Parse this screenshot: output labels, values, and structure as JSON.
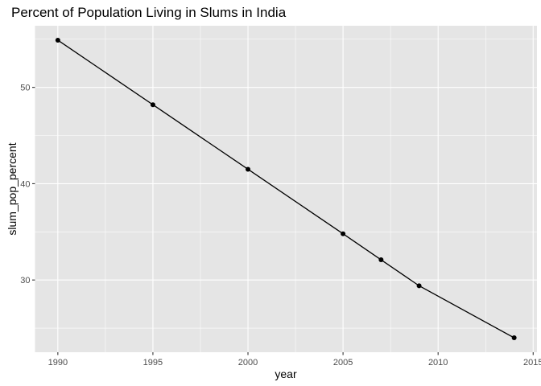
{
  "chart_data": {
    "type": "line",
    "title": "Percent of Population Living in Slums in India",
    "xlabel": "year",
    "ylabel": "slum_pop_percent",
    "x": [
      1990,
      1995,
      2000,
      2005,
      2007,
      2009,
      2014
    ],
    "series": [
      {
        "values": [
          54.9,
          48.2,
          41.5,
          34.8,
          32.1,
          29.4,
          24.0
        ]
      }
    ],
    "xlim": [
      1988.8,
      2015.2
    ],
    "ylim": [
      22.5,
      56.4
    ],
    "xticks": [
      1990,
      1995,
      2000,
      2005,
      2010,
      2015
    ],
    "xtick_labels": [
      "1990",
      "1995",
      "2000",
      "2005",
      "2010",
      "2015"
    ],
    "yticks": [
      30,
      40,
      50
    ],
    "ytick_labels": [
      "30",
      "40",
      "50"
    ],
    "grid": true,
    "legend": "none",
    "colors": {
      "panel": "#e5e5e5",
      "grid": "#ffffff",
      "line": "#000000",
      "point": "#000000"
    }
  }
}
